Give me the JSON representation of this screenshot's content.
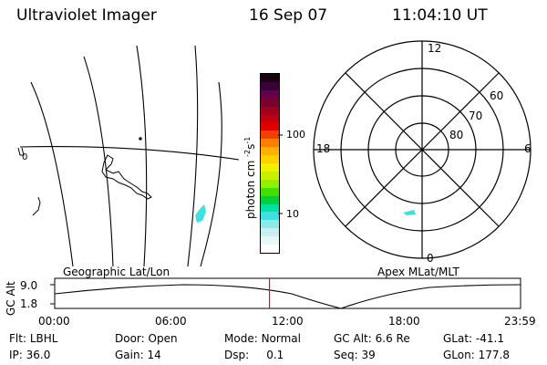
{
  "header": {
    "title": "Ultraviolet Imager",
    "date": "16 Sep 07",
    "time": "11:04:10 UT"
  },
  "geo_panel": {
    "label": "Geographic Lat/Lon",
    "side_label": "0"
  },
  "colorbar": {
    "unit_label": "photon cm",
    "unit_exp1": "-2",
    "unit_mid": "s",
    "unit_exp2": "-1",
    "ticks": [
      "100",
      "10"
    ],
    "colors": [
      "#1a0010",
      "#3a0038",
      "#62004e",
      "#7a0030",
      "#a0001e",
      "#c00010",
      "#e00000",
      "#f04000",
      "#ff8000",
      "#ffb000",
      "#ffd000",
      "#f0f000",
      "#c8f000",
      "#90f000",
      "#40e000",
      "#00d040",
      "#00e0a0",
      "#40e0e0",
      "#90e8e8",
      "#c8f0f0",
      "#e8f8f8",
      "#ffffff"
    ]
  },
  "polar_panel": {
    "label": "Apex MLat/MLT",
    "mlt_labels": {
      "top": "12",
      "left": "18",
      "right": "6",
      "bottom": "0"
    },
    "lat_labels": [
      "60",
      "70",
      "80"
    ]
  },
  "timeline": {
    "y_label": "GC Alt",
    "y_ticks": [
      "9.0",
      "1.8"
    ],
    "x_ticks": [
      "00:00",
      "06:00",
      "12:00",
      "18:00",
      "23:59"
    ],
    "current_time_fraction": 0.461
  },
  "status": {
    "row1": [
      {
        "label": "Flt:",
        "value": "LBHL"
      },
      {
        "label": "Door:",
        "value": "Open"
      },
      {
        "label": "Mode:",
        "value": "Normal"
      },
      {
        "label": "GC Alt:",
        "value": "6.6 Re"
      },
      {
        "label": "GLat:",
        "value": "-41.1"
      }
    ],
    "row2": [
      {
        "label": "IP:",
        "value": "36.0"
      },
      {
        "label": "Gain:",
        "value": "14"
      },
      {
        "label": "Dsp:",
        "value": "0.1"
      },
      {
        "label": "Seq:",
        "value": "39"
      },
      {
        "label": "GLon:",
        "value": "177.8"
      }
    ]
  },
  "colors": {
    "ink": "#000000",
    "marker": "#ff0000",
    "aurora": "#40e0e0"
  }
}
